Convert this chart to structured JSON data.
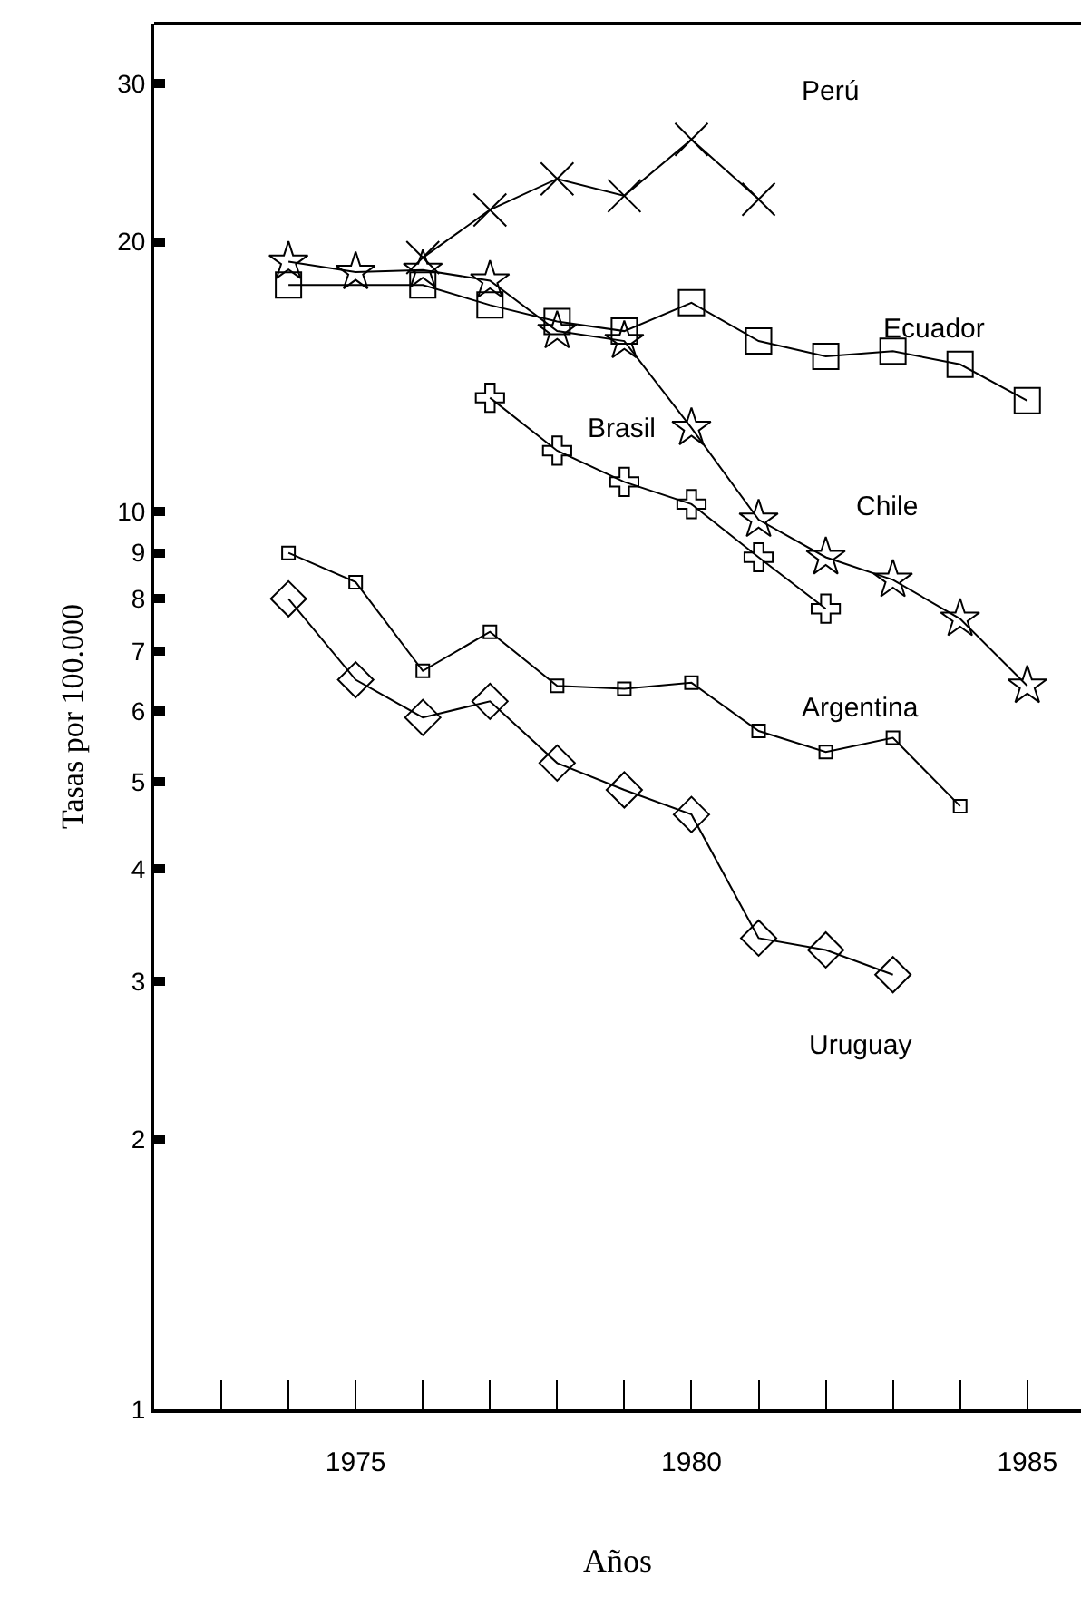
{
  "chart_data": {
    "type": "line",
    "xlabel": "Años",
    "ylabel": "Tasas por 100.000",
    "log": "y",
    "grid": false,
    "legend": false,
    "line_style": "solid",
    "xlim": [
      1972,
      1985.8
    ],
    "xticks": [
      {
        "value": 1973,
        "label": null
      },
      {
        "value": 1974,
        "label": null
      },
      1975,
      {
        "value": 1976,
        "label": null
      },
      {
        "value": 1977,
        "label": null
      },
      {
        "value": 1978,
        "label": null
      },
      {
        "value": 1979,
        "label": null
      },
      1980,
      {
        "value": 1981,
        "label": null
      },
      {
        "value": 1982,
        "label": null
      },
      {
        "value": 1983,
        "label": null
      },
      {
        "value": 1984,
        "label": null
      },
      1985
    ],
    "ylim": [
      1,
      35
    ],
    "yticks": [
      1,
      2,
      3,
      4,
      5,
      6,
      7,
      8,
      9,
      10,
      20,
      30
    ],
    "series": [
      {
        "name": "Perú",
        "color": "#000000",
        "marker": "x",
        "x": [
          1976,
          1977,
          1978,
          1979,
          1980,
          1981
        ],
        "values": [
          19.2,
          21.7,
          23.5,
          22.5,
          26,
          22.3
        ]
      },
      {
        "name": "Ecuador",
        "color": "#000000",
        "marker": "square",
        "x": [
          1974,
          1976,
          1977,
          1978,
          1979,
          1980,
          1981,
          1982,
          1983,
          1984,
          1985
        ],
        "values": [
          17.9,
          17.9,
          17,
          16.3,
          15.9,
          17.1,
          15.5,
          14.9,
          15.1,
          14.6,
          13.3
        ]
      },
      {
        "name": "Brasil",
        "color": "#000000",
        "marker": "cross",
        "x": [
          1977,
          1978,
          1979,
          1980,
          1981,
          1982
        ],
        "values": [
          13.4,
          11.7,
          10.8,
          10.2,
          8.9,
          7.8
        ]
      },
      {
        "name": "Chile",
        "color": "#000000",
        "marker": "star",
        "x": [
          1974,
          1975,
          1976,
          1977,
          1978,
          1979,
          1980,
          1981,
          1982,
          1983,
          1984,
          1985
        ],
        "values": [
          19,
          18.5,
          18.6,
          18.1,
          15.9,
          15.5,
          12.4,
          9.8,
          8.9,
          8.4,
          7.6,
          6.4
        ]
      },
      {
        "name": "Argentina",
        "color": "#000000",
        "marker": "square",
        "x": [
          1974,
          1975,
          1976,
          1977,
          1978,
          1979,
          1980,
          1981,
          1982,
          1983,
          1984
        ],
        "values": [
          9,
          8.35,
          6.65,
          7.35,
          6.4,
          6.35,
          6.45,
          5.7,
          5.4,
          5.6,
          4.7
        ]
      },
      {
        "name": "Uruguay",
        "color": "#000000",
        "marker": "diamond",
        "x": [
          1974,
          1975,
          1976,
          1977,
          1978,
          1979,
          1980,
          1981,
          1982,
          1983
        ],
        "values": [
          8,
          6.5,
          5.9,
          6.15,
          5.25,
          4.9,
          4.6,
          3.35,
          3.25,
          3.05
        ]
      }
    ]
  }
}
